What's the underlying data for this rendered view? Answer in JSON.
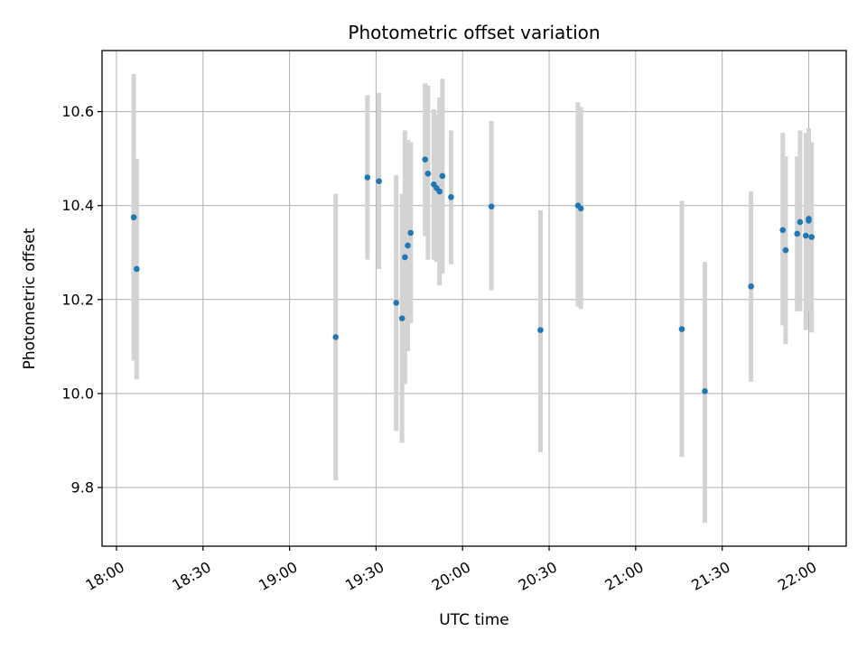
{
  "chart_data": {
    "type": "scatter",
    "title": "Photometric offset variation",
    "xlabel": "UTC time",
    "ylabel": "Photometric offset",
    "grid": true,
    "legend": "none",
    "colors": {
      "point": "#1f77b4",
      "errorbar": "#d3d3d3",
      "grid": "#b0b0b0"
    },
    "xlim": [
      "17:55",
      "22:13"
    ],
    "ylim": [
      9.675,
      10.73
    ],
    "x_ticks": [
      "18:00",
      "18:30",
      "19:00",
      "19:30",
      "20:00",
      "20:30",
      "21:00",
      "21:30",
      "22:00"
    ],
    "y_ticks": [
      9.8,
      10.0,
      10.2,
      10.4,
      10.6
    ],
    "y_tick_labels": [
      "9.8",
      "10.0",
      "10.2",
      "10.4",
      "10.6"
    ],
    "points": [
      {
        "t": "18:06",
        "y": 10.375,
        "lo": 10.07,
        "hi": 10.68
      },
      {
        "t": "18:07",
        "y": 10.265,
        "lo": 10.03,
        "hi": 10.5
      },
      {
        "t": "19:16",
        "y": 10.12,
        "lo": 9.815,
        "hi": 10.425
      },
      {
        "t": "19:27",
        "y": 10.46,
        "lo": 10.285,
        "hi": 10.635
      },
      {
        "t": "19:31",
        "y": 10.452,
        "lo": 10.265,
        "hi": 10.64
      },
      {
        "t": "19:37",
        "y": 10.193,
        "lo": 9.92,
        "hi": 10.465
      },
      {
        "t": "19:39",
        "y": 10.16,
        "lo": 9.895,
        "hi": 10.425
      },
      {
        "t": "19:40",
        "y": 10.29,
        "lo": 10.02,
        "hi": 10.56
      },
      {
        "t": "19:41",
        "y": 10.315,
        "lo": 10.09,
        "hi": 10.54
      },
      {
        "t": "19:42",
        "y": 10.342,
        "lo": 10.15,
        "hi": 10.535
      },
      {
        "t": "19:47",
        "y": 10.498,
        "lo": 10.335,
        "hi": 10.66
      },
      {
        "t": "19:48",
        "y": 10.468,
        "lo": 10.285,
        "hi": 10.655
      },
      {
        "t": "19:50",
        "y": 10.445,
        "lo": 10.285,
        "hi": 10.605
      },
      {
        "t": "19:51",
        "y": 10.437,
        "lo": 10.28,
        "hi": 10.595
      },
      {
        "t": "19:52",
        "y": 10.43,
        "lo": 10.23,
        "hi": 10.63
      },
      {
        "t": "19:53",
        "y": 10.463,
        "lo": 10.255,
        "hi": 10.67
      },
      {
        "t": "19:56",
        "y": 10.418,
        "lo": 10.275,
        "hi": 10.56
      },
      {
        "t": "20:10",
        "y": 10.398,
        "lo": 10.22,
        "hi": 10.58
      },
      {
        "t": "20:27",
        "y": 10.135,
        "lo": 9.875,
        "hi": 10.39
      },
      {
        "t": "20:40",
        "y": 10.4,
        "lo": 10.185,
        "hi": 10.62
      },
      {
        "t": "20:41",
        "y": 10.394,
        "lo": 10.18,
        "hi": 10.61
      },
      {
        "t": "21:16",
        "y": 10.137,
        "lo": 9.865,
        "hi": 10.41
      },
      {
        "t": "21:24",
        "y": 10.005,
        "lo": 9.725,
        "hi": 10.28
      },
      {
        "t": "21:40",
        "y": 10.228,
        "lo": 10.025,
        "hi": 10.43
      },
      {
        "t": "21:51",
        "y": 10.348,
        "lo": 10.145,
        "hi": 10.555
      },
      {
        "t": "21:52",
        "y": 10.305,
        "lo": 10.105,
        "hi": 10.505
      },
      {
        "t": "21:56",
        "y": 10.34,
        "lo": 10.175,
        "hi": 10.505
      },
      {
        "t": "21:57",
        "y": 10.365,
        "lo": 10.175,
        "hi": 10.56
      },
      {
        "t": "21:59",
        "y": 10.336,
        "lo": 10.135,
        "hi": 10.555
      },
      {
        "t": "22:00",
        "y": 10.372,
        "lo": 10.18,
        "hi": 10.565
      },
      {
        "t": "22:00",
        "y": 10.368,
        "lo": 10.175,
        "hi": 10.56
      },
      {
        "t": "22:01",
        "y": 10.333,
        "lo": 10.13,
        "hi": 10.535
      }
    ]
  }
}
